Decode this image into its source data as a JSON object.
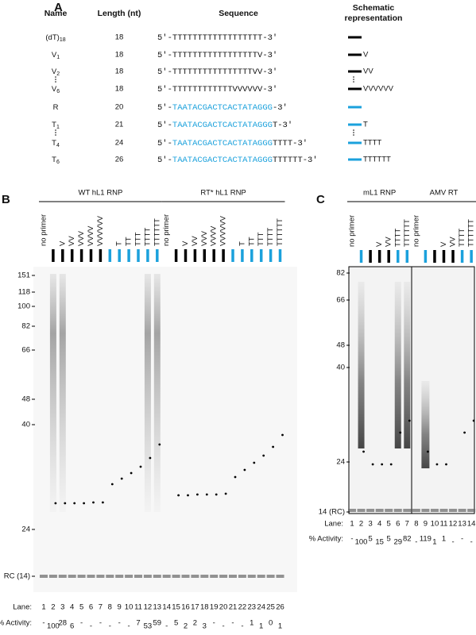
{
  "panel_a": {
    "label": "A",
    "headers": [
      [
        "Name"
      ],
      [
        "Length (nt)"
      ],
      [
        "Sequence"
      ],
      [
        "Schematic",
        "representation"
      ]
    ],
    "five_prime": "5'-",
    "three_prime": "-3'",
    "rows": [
      {
        "name": "(dT)",
        "sub": "18",
        "length": 18,
        "seq_black": "TTTTTTTTTTTTTTTTTT",
        "bar": "black"
      },
      {
        "name": "V",
        "sub": "1",
        "length": 18,
        "seq_black": "TTTTTTTTTTTTTTTTTV",
        "bar": "black",
        "tail": "V"
      },
      {
        "name": "V",
        "sub": "2",
        "length": 18,
        "seq_black": "TTTTTTTTTTTTTTTTVV",
        "bar": "black",
        "tail": "VV"
      },
      {
        "name": "V",
        "sub": "6",
        "length": 18,
        "seq_black": "TTTTTTTTTTTTVVVVVV",
        "bar": "black",
        "tail": "VVVVVV"
      },
      {
        "name": "R",
        "length": 20,
        "seq_blue": "TAATACGACTCACTATAGGG",
        "bar": "blue"
      },
      {
        "name": "T",
        "sub": "1",
        "length": 21,
        "seq_blue": "TAATACGACTCACTATAGGG",
        "seq_black": "T",
        "bar": "blue",
        "tail": "T"
      },
      {
        "name": "T",
        "sub": "4",
        "length": 24,
        "seq_blue": "TAATACGACTCACTATAGGG",
        "seq_black": "TTTT",
        "bar": "blue",
        "tail": "TTTT"
      },
      {
        "name": "T",
        "sub": "6",
        "length": 26,
        "seq_blue": "TAATACGACTCACTATAGGG",
        "seq_black": "TTTTTT",
        "bar": "blue",
        "tail": "TTTTTT"
      }
    ]
  },
  "panel_b": {
    "label": "B",
    "lane_caption": "Lane:",
    "activity_caption": "% Activity:",
    "markers": [
      151,
      118,
      100,
      82,
      66,
      48,
      40,
      24,
      "RC (14)"
    ],
    "groups": [
      {
        "name": "WT hL1 RNP",
        "lane_headers": [
          {
            "label": "no primer"
          },
          {
            "bar": "black"
          },
          {
            "label": "V",
            "bar": "black"
          },
          {
            "label": "VV",
            "bar": "black"
          },
          {
            "label": "VVV",
            "bar": "black"
          },
          {
            "label": "VVVV",
            "bar": "black"
          },
          {
            "label": "VVVVVV",
            "bar": "black"
          },
          {
            "bar": "blue"
          },
          {
            "label": "T",
            "bar": "blue"
          },
          {
            "label": "TT",
            "bar": "blue"
          },
          {
            "label": "TTT",
            "bar": "blue"
          },
          {
            "label": "TTTT",
            "bar": "blue"
          },
          {
            "label": "TTTTTT",
            "bar": "blue"
          }
        ],
        "lanes": [
          1,
          2,
          3,
          4,
          5,
          6,
          7,
          8,
          9,
          10,
          11,
          12,
          13
        ],
        "activity": [
          "-",
          100,
          28,
          6,
          "-",
          "-",
          "-",
          "-",
          "-",
          "-",
          7,
          53,
          59
        ]
      },
      {
        "name": "RT* hL1 RNP",
        "lane_headers": [
          {
            "label": "no primer"
          },
          {
            "bar": "black"
          },
          {
            "label": "V",
            "bar": "black"
          },
          {
            "label": "VV",
            "bar": "black"
          },
          {
            "label": "VVV",
            "bar": "black"
          },
          {
            "label": "VVVV",
            "bar": "black"
          },
          {
            "label": "VVVVVV",
            "bar": "black"
          },
          {
            "bar": "blue"
          },
          {
            "label": "T",
            "bar": "blue"
          },
          {
            "label": "TT",
            "bar": "blue"
          },
          {
            "label": "TTT",
            "bar": "blue"
          },
          {
            "label": "TTTT",
            "bar": "blue"
          },
          {
            "label": "TTTTTT",
            "bar": "blue"
          }
        ],
        "lanes": [
          14,
          15,
          16,
          17,
          18,
          19,
          20,
          21,
          22,
          23,
          24,
          25,
          26
        ],
        "activity": [
          "-",
          5,
          2,
          2,
          3,
          "-",
          "-",
          "-",
          "-",
          1,
          1,
          0,
          1
        ]
      }
    ]
  },
  "panel_c": {
    "label": "C",
    "lane_caption": "Lane:",
    "activity_caption": "% Activity:",
    "markers": [
      82,
      66,
      48,
      40,
      24,
      "14 (RC)"
    ],
    "groups": [
      {
        "name": "mL1 RNP",
        "lane_headers": [
          {
            "label": "no primer"
          },
          {
            "bar": "blue"
          },
          {
            "bar": "black"
          },
          {
            "label": "V",
            "bar": "black"
          },
          {
            "label": "VV",
            "bar": "black"
          },
          {
            "label": "TTTT",
            "bar": "blue"
          },
          {
            "label": "TTTTTT",
            "bar": "blue"
          }
        ],
        "lanes": [
          1,
          2,
          3,
          4,
          5,
          6,
          7
        ],
        "activity": [
          "-",
          100,
          5,
          15,
          5,
          29,
          82
        ]
      },
      {
        "name": "AMV RT",
        "lane_headers": [
          {
            "label": "no primer"
          },
          {
            "bar": "blue"
          },
          {
            "bar": "black"
          },
          {
            "label": "V",
            "bar": "black"
          },
          {
            "label": "VV",
            "bar": "black"
          },
          {
            "label": "TTTT",
            "bar": "blue"
          },
          {
            "label": "TTTTTT",
            "bar": "blue"
          }
        ],
        "lanes": [
          8,
          9,
          10,
          11,
          12,
          13,
          14
        ],
        "activity": [
          "-",
          119,
          1,
          1,
          "-",
          "-",
          "-"
        ]
      }
    ]
  }
}
